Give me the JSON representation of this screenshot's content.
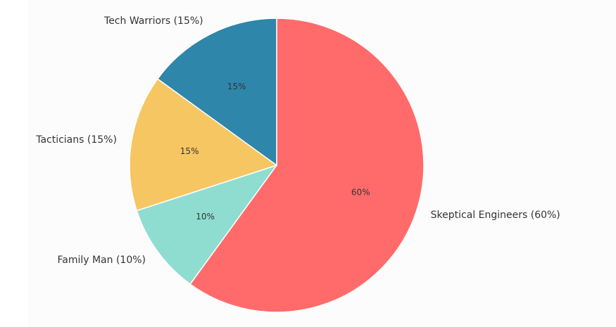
{
  "chart_data": {
    "type": "pie",
    "categories": [
      "Skeptical Engineers",
      "Family Man",
      "Tacticians",
      "Tech Warriors"
    ],
    "values": [
      60,
      10,
      15,
      15
    ],
    "colors": [
      "#ff6b6b",
      "#8fddd0",
      "#f5c662",
      "#2e86ab"
    ],
    "labels": [
      "Skeptical Engineers (60%)",
      "Family Man (10%)",
      "Tacticians (15%)",
      "Tech Warriors (15%)"
    ],
    "pct_labels": [
      "60%",
      "10%",
      "15%",
      "15%"
    ],
    "start_angle_deg": 90,
    "direction": "clockwise",
    "title": "",
    "legend": "none"
  }
}
